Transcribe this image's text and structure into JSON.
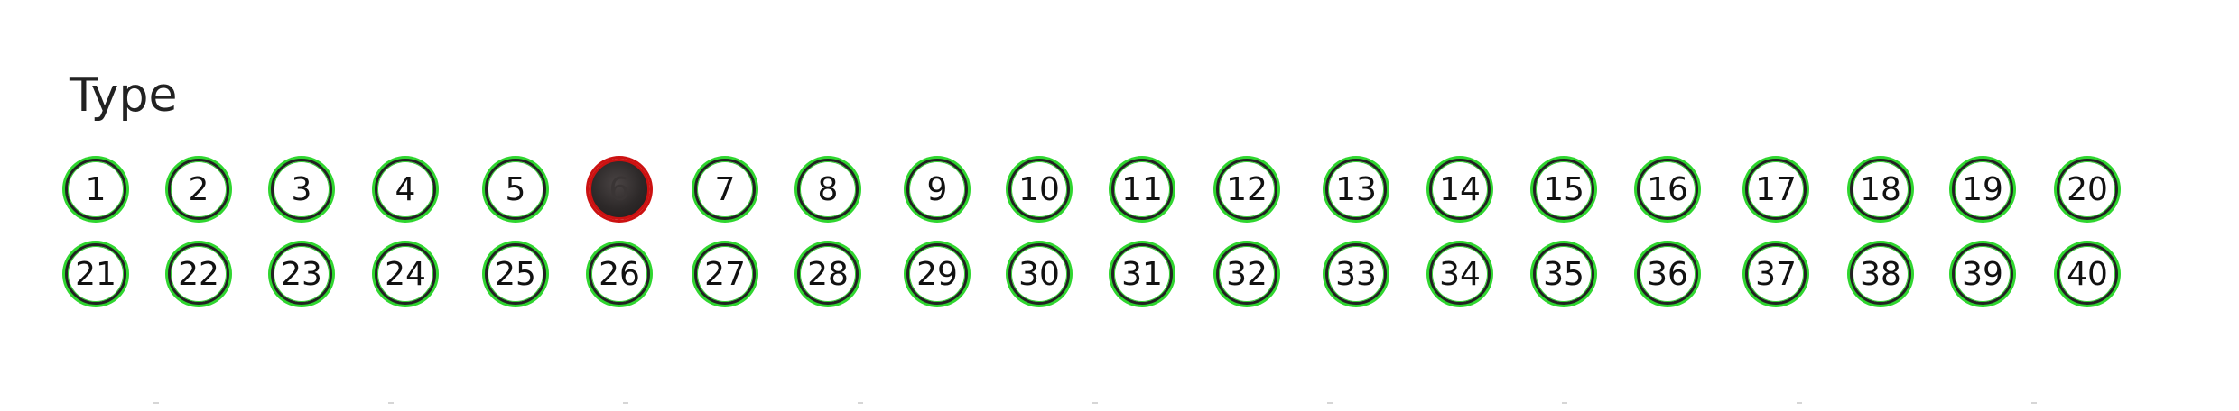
{
  "heading": "Type",
  "row1": [
    {
      "label": "1",
      "filled": false
    },
    {
      "label": "2",
      "filled": false
    },
    {
      "label": "3",
      "filled": false
    },
    {
      "label": "4",
      "filled": false
    },
    {
      "label": "5",
      "filled": false
    },
    {
      "label": "6",
      "filled": true
    },
    {
      "label": "7",
      "filled": false
    },
    {
      "label": "8",
      "filled": false
    },
    {
      "label": "9",
      "filled": false
    },
    {
      "label": "10",
      "filled": false
    },
    {
      "label": "11",
      "filled": false
    },
    {
      "label": "12",
      "filled": false
    },
    {
      "label": "13",
      "filled": false
    },
    {
      "label": "14",
      "filled": false
    },
    {
      "label": "15",
      "filled": false
    },
    {
      "label": "16",
      "filled": false
    },
    {
      "label": "17",
      "filled": false
    },
    {
      "label": "18",
      "filled": false
    },
    {
      "label": "19",
      "filled": false
    },
    {
      "label": "20",
      "filled": false
    }
  ],
  "row2": [
    {
      "label": "21",
      "filled": false
    },
    {
      "label": "22",
      "filled": false
    },
    {
      "label": "23",
      "filled": false
    },
    {
      "label": "24",
      "filled": false
    },
    {
      "label": "25",
      "filled": false
    },
    {
      "label": "26",
      "filled": false
    },
    {
      "label": "27",
      "filled": false
    },
    {
      "label": "28",
      "filled": false
    },
    {
      "label": "29",
      "filled": false
    },
    {
      "label": "30",
      "filled": false
    },
    {
      "label": "31",
      "filled": false
    },
    {
      "label": "32",
      "filled": false
    },
    {
      "label": "33",
      "filled": false
    },
    {
      "label": "34",
      "filled": false
    },
    {
      "label": "35",
      "filled": false
    },
    {
      "label": "36",
      "filled": false
    },
    {
      "label": "37",
      "filled": false
    },
    {
      "label": "38",
      "filled": false
    },
    {
      "label": "39",
      "filled": false
    },
    {
      "label": "40",
      "filled": false
    }
  ],
  "colors": {
    "ring_accent": "#2fd62f",
    "selected_ring": "#cc1111",
    "selected_fill": "#2d2929"
  }
}
